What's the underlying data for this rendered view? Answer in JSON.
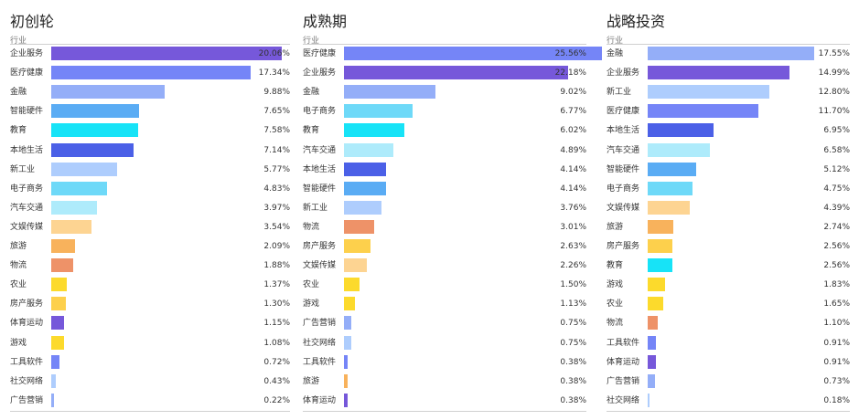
{
  "colors": {
    "企业服务": "#7658DA",
    "医疗健康": "#7585F7",
    "金融": "#94AEF8",
    "智能硬件": "#5AACF4",
    "教育": "#17E3F7",
    "本地生活": "#4B60E7",
    "新工业": "#AECDFD",
    "电子商务": "#6ED9F8",
    "汽车交通": "#AEEBFB",
    "文娱传媒": "#FDD492",
    "旅游": "#F8B25C",
    "物流": "#EE9268",
    "农业": "#FCDA2C",
    "房产服务": "#FDD04C",
    "体育运动": "#7658DA",
    "游戏": "#FCDA2C",
    "工具软件": "#7585F7",
    "社交网络": "#AECDFD",
    "广告营销": "#94AEF8"
  },
  "chart_data": [
    {
      "type": "bar",
      "orientation": "horizontal",
      "title": "初创轮",
      "column_header": "行业",
      "categories": [
        "企业服务",
        "医疗健康",
        "金融",
        "智能硬件",
        "教育",
        "本地生活",
        "新工业",
        "电子商务",
        "汽车交通",
        "文娱传媒",
        "旅游",
        "物流",
        "农业",
        "房产服务",
        "体育运动",
        "游戏",
        "工具软件",
        "社交网络",
        "广告营销"
      ],
      "values": [
        20.06,
        17.34,
        9.88,
        7.65,
        7.58,
        7.14,
        5.77,
        4.83,
        3.97,
        3.54,
        2.09,
        1.88,
        1.37,
        1.3,
        1.15,
        1.08,
        0.72,
        0.43,
        0.22
      ],
      "labels": [
        "20.06%",
        "17.34%",
        "9.88%",
        "7.65%",
        "7.58%",
        "7.14%",
        "5.77%",
        "4.83%",
        "3.97%",
        "3.54%",
        "2.09%",
        "1.88%",
        "1.37%",
        "1.30%",
        "1.15%",
        "1.08%",
        "0.72%",
        "0.43%",
        "0.22%"
      ],
      "xlim": [
        0,
        20.06
      ]
    },
    {
      "type": "bar",
      "orientation": "horizontal",
      "title": "成熟期",
      "column_header": "行业",
      "categories": [
        "医疗健康",
        "企业服务",
        "金融",
        "电子商务",
        "教育",
        "汽车交通",
        "本地生活",
        "智能硬件",
        "新工业",
        "物流",
        "房产服务",
        "文娱传媒",
        "农业",
        "游戏",
        "广告营销",
        "社交网络",
        "工具软件",
        "旅游",
        "体育运动"
      ],
      "values": [
        25.56,
        22.18,
        9.02,
        6.77,
        6.02,
        4.89,
        4.14,
        4.14,
        3.76,
        3.01,
        2.63,
        2.26,
        1.5,
        1.13,
        0.75,
        0.75,
        0.38,
        0.38,
        0.38
      ],
      "labels": [
        "25.56%",
        "22.18%",
        "9.02%",
        "6.77%",
        "6.02%",
        "4.89%",
        "4.14%",
        "4.14%",
        "3.76%",
        "3.01%",
        "2.63%",
        "2.26%",
        "1.50%",
        "1.13%",
        "0.75%",
        "0.75%",
        "0.38%",
        "0.38%",
        "0.38%"
      ],
      "xlim": [
        0,
        25.56
      ]
    },
    {
      "type": "bar",
      "orientation": "horizontal",
      "title": "战略投资",
      "column_header": "行业",
      "categories": [
        "金融",
        "企业服务",
        "新工业",
        "医疗健康",
        "本地生活",
        "汽车交通",
        "智能硬件",
        "电子商务",
        "文娱传媒",
        "旅游",
        "房产服务",
        "教育",
        "游戏",
        "农业",
        "物流",
        "工具软件",
        "体育运动",
        "广告营销",
        "社交网络"
      ],
      "values": [
        17.55,
        14.99,
        12.8,
        11.7,
        6.95,
        6.58,
        5.12,
        4.75,
        4.39,
        2.74,
        2.56,
        2.56,
        1.83,
        1.65,
        1.1,
        0.91,
        0.91,
        0.73,
        0.18
      ],
      "labels": [
        "17.55%",
        "14.99%",
        "12.80%",
        "11.70%",
        "6.95%",
        "6.58%",
        "5.12%",
        "4.75%",
        "4.39%",
        "2.74%",
        "2.56%",
        "2.56%",
        "1.83%",
        "1.65%",
        "1.10%",
        "0.91%",
        "0.91%",
        "0.73%",
        "0.18%"
      ],
      "xlim": [
        0,
        17.55
      ]
    }
  ]
}
